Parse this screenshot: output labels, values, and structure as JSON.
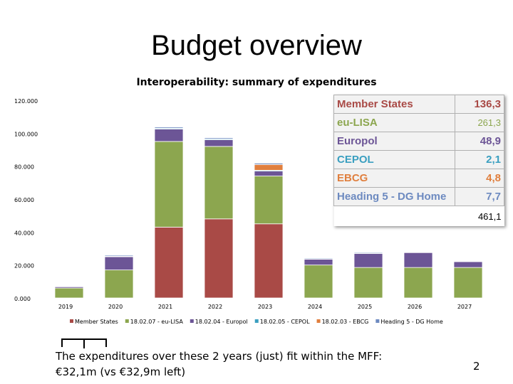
{
  "title": "Budget overview",
  "subtitle": "Interoperability: summary of expenditures",
  "summary_table": {
    "rows": [
      {
        "label": "Member States",
        "value": "136,3",
        "color": "#a94a46",
        "plain": false
      },
      {
        "label": "eu-LISA",
        "value": "261,3",
        "color": "#8ca64f",
        "plain": true
      },
      {
        "label": "Europol",
        "value": "48,9",
        "color": "#6c5596",
        "plain": false
      },
      {
        "label": "CEPOL",
        "value": "2,1",
        "color": "#3a9fc0",
        "plain": false
      },
      {
        "label": "EBCG",
        "value": "4,8",
        "color": "#e07f3e",
        "plain": false
      },
      {
        "label": "Heading 5 - DG Home",
        "value": "7,7",
        "color": "#6d8ac0",
        "plain": false
      }
    ],
    "total": "461,1"
  },
  "footer": {
    "line1": "The expenditures over these 2 years (just) fit within the MFF:",
    "line2": "€32,1m (vs €32,9m left)"
  },
  "page_number": "2",
  "chart_data": {
    "type": "bar",
    "stacked": true,
    "title": "Interoperability: summary of expenditures",
    "categories": [
      "2019",
      "2020",
      "2021",
      "2022",
      "2023",
      "2024",
      "2025",
      "2026",
      "2027"
    ],
    "y_tick_labels": [
      "0.000",
      "20.000",
      "40.000",
      "60.000",
      "80.000",
      "100.000",
      "120.000"
    ],
    "ylim": [
      0,
      120000
    ],
    "series": [
      {
        "name": "Member States",
        "color": "#a94a46",
        "values": [
          0,
          0,
          43000,
          48000,
          45000,
          0,
          0,
          0,
          0
        ]
      },
      {
        "name": "18.02.07 - eu-LISA",
        "color": "#8ca64f",
        "values": [
          6000,
          17000,
          52000,
          44000,
          29000,
          20000,
          18500,
          18500,
          18500
        ]
      },
      {
        "name": "18.02.04 - Europol",
        "color": "#6c5596",
        "values": [
          800,
          8000,
          7500,
          4000,
          3000,
          3500,
          8500,
          9000,
          3500
        ]
      },
      {
        "name": "18.02.05 - CEPOL",
        "color": "#3a9fc0",
        "values": [
          300,
          300,
          500,
          500,
          500,
          300,
          300,
          0,
          0
        ]
      },
      {
        "name": "18.02.03 - EBCG",
        "color": "#e07f3e",
        "values": [
          0,
          0,
          0,
          0,
          3500,
          0,
          0,
          0,
          0
        ]
      },
      {
        "name": "Heading 5 - DG Home",
        "color": "#6d8ac0",
        "values": [
          300,
          600,
          700,
          700,
          800,
          500,
          500,
          0,
          0
        ]
      }
    ]
  }
}
